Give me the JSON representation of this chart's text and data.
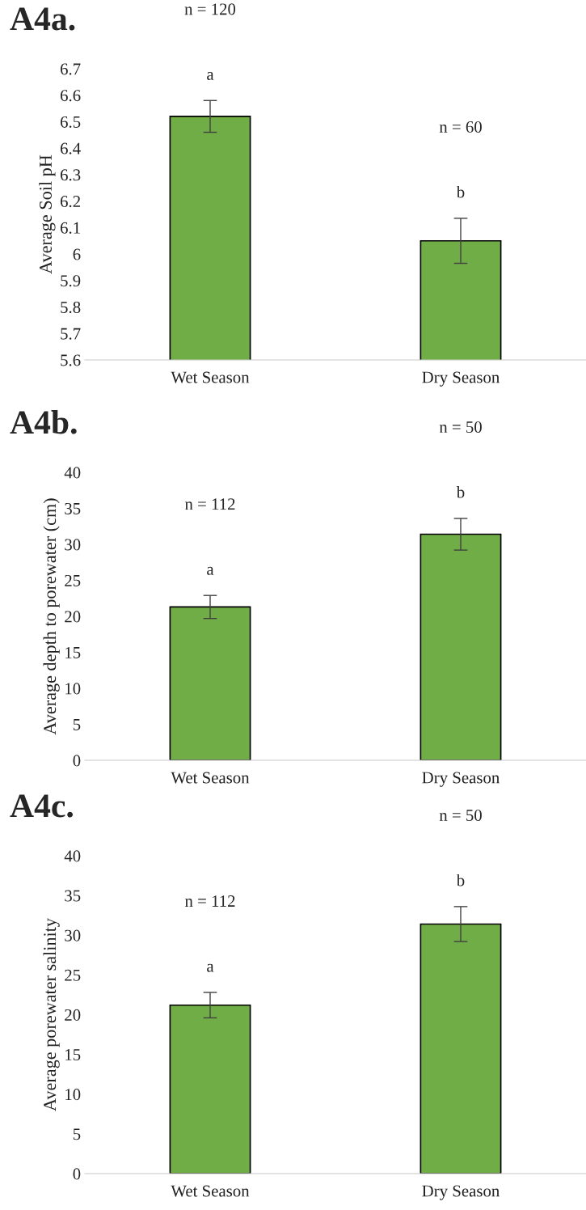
{
  "chart_data": [
    {
      "type": "bar",
      "title": "A4a.",
      "ylabel": "Average Soil pH",
      "categories": [
        "Wet Season",
        "Dry Season"
      ],
      "values": [
        6.52,
        6.05
      ],
      "errors": [
        0.06,
        0.085
      ],
      "color": "#70ad47",
      "ylim": [
        5.6,
        6.7
      ],
      "yticks": [
        5.6,
        5.7,
        5.8,
        5.9,
        {
          "value": 6.0,
          "label": "6"
        },
        6.1,
        6.2,
        6.3,
        6.4,
        6.5,
        6.6,
        6.7
      ],
      "grid": false,
      "annotations": [
        "n = 120",
        "a",
        "n = 60",
        "b"
      ]
    },
    {
      "type": "bar",
      "title": "A4b.",
      "ylabel": "Average depth to porewater (cm)",
      "categories": [
        "Wet Season",
        "Dry Season"
      ],
      "values": [
        21.3,
        31.4
      ],
      "errors": [
        1.6,
        2.2
      ],
      "color": "#70ad47",
      "ylim": [
        0,
        40
      ],
      "yticks": [
        0,
        5,
        10,
        15,
        20,
        25,
        30,
        35,
        40
      ],
      "grid": false,
      "annotations": [
        "n = 112",
        "a",
        "n = 50",
        "b"
      ]
    },
    {
      "type": "bar",
      "title": "A4c.",
      "ylabel": "Average porewater salinity",
      "categories": [
        "Wet Season",
        "Dry Season"
      ],
      "values": [
        21.2,
        31.4
      ],
      "errors": [
        1.6,
        2.2
      ],
      "color": "#70ad47",
      "ylim": [
        0,
        40
      ],
      "yticks": [
        0,
        5,
        10,
        15,
        20,
        25,
        30,
        35,
        40
      ],
      "grid": false,
      "annotations": [
        "n = 112",
        "a",
        "n = 50",
        "b"
      ]
    }
  ]
}
